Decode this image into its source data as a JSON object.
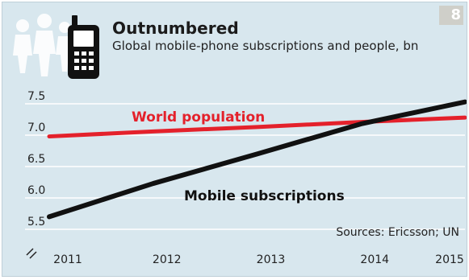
{
  "figure_number": "8",
  "title": "Outnumbered",
  "subtitle": "Global mobile-phone subscriptions and people, bn",
  "source": "Sources: Ericsson; UN",
  "icons": [
    "people-silhouettes-icon",
    "mobile-phone-icon",
    "axis-break-icon"
  ],
  "colors": {
    "background": "#d8e7ee",
    "population_line": "#e4212b",
    "subscriptions_line": "#111111",
    "gridline": "#ffffff"
  },
  "chart_data": {
    "type": "line",
    "title": "Outnumbered",
    "subtitle": "Global mobile-phone subscriptions and people, bn",
    "xlabel": "",
    "ylabel": "",
    "x": [
      2011,
      2012,
      2013,
      2014,
      2015
    ],
    "x_tick_labels": [
      "2011",
      "2012",
      "2013",
      "2014",
      "2015"
    ],
    "xlim": [
      2011,
      2015
    ],
    "ylim": [
      5.5,
      7.5
    ],
    "y_ticks": [
      5.5,
      6.0,
      6.5,
      7.0,
      7.5
    ],
    "y_tick_labels": [
      "5.5",
      "6.0",
      "6.5",
      "7.0",
      "7.5"
    ],
    "grid": true,
    "series": [
      {
        "name": "World population",
        "color": "#e4212b",
        "values": [
          6.98,
          7.06,
          7.13,
          7.21,
          7.28
        ]
      },
      {
        "name": "Mobile subscriptions",
        "color": "#111111",
        "values": [
          5.7,
          6.23,
          6.7,
          7.18,
          7.53
        ]
      }
    ],
    "annotations": [
      "Sources: Ericsson; UN"
    ]
  }
}
